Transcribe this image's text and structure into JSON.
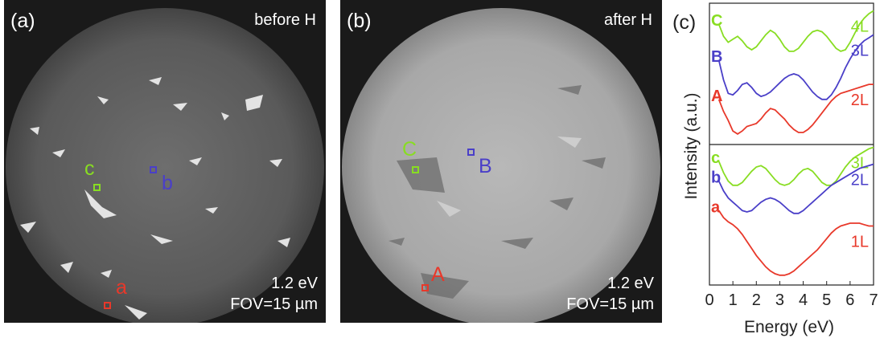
{
  "panels": [
    {
      "label": "(a)",
      "title": "before H",
      "energy": "1.2 eV",
      "fov": "FOV=15 µm",
      "markers": [
        {
          "label": "c",
          "color": "#88dd22"
        },
        {
          "label": "b",
          "color": "#4a3fc8"
        },
        {
          "label": "a",
          "color": "#e8382a"
        }
      ]
    },
    {
      "label": "(b)",
      "title": "after H",
      "energy": "1.2 eV",
      "fov": "FOV=15 µm",
      "markers": [
        {
          "label": "C",
          "color": "#88dd22"
        },
        {
          "label": "B",
          "color": "#4a3fc8"
        },
        {
          "label": "A",
          "color": "#e8382a"
        }
      ]
    }
  ],
  "chart_data": {
    "type": "line",
    "panel_label": "(c)",
    "xlabel": "Energy (eV)",
    "ylabel": "Intensity (a.u.)",
    "xlim": [
      0,
      7
    ],
    "x_ticks": [
      "0",
      "1",
      "2",
      "3",
      "4",
      "5",
      "6",
      "7"
    ],
    "groups": [
      {
        "series": [
          {
            "name": "C",
            "layer": "4L",
            "color": "#88dd22",
            "x": [
              0.4,
              0.6,
              0.8,
              1.0,
              1.2,
              1.4,
              1.6,
              1.8,
              2.0,
              2.2,
              2.4,
              2.6,
              2.8,
              3.0,
              3.2,
              3.4,
              3.6,
              3.8,
              4.0,
              4.2,
              4.4,
              4.6,
              4.8,
              5.0,
              5.2,
              5.4,
              5.6,
              5.8,
              6.0,
              6.2,
              6.4,
              6.6,
              6.8,
              7.0
            ],
            "y": [
              9.3,
              8.9,
              8.7,
              8.8,
              8.9,
              8.75,
              8.55,
              8.45,
              8.55,
              8.75,
              8.95,
              9.1,
              9.0,
              8.8,
              8.55,
              8.4,
              8.4,
              8.5,
              8.7,
              8.9,
              9.05,
              9.1,
              9.05,
              8.9,
              8.7,
              8.5,
              8.4,
              8.45,
              8.7,
              9.0,
              9.3,
              9.5,
              9.65,
              9.75
            ]
          },
          {
            "name": "B",
            "layer": "3L",
            "color": "#4a3fc8",
            "x": [
              0.4,
              0.6,
              0.8,
              1.0,
              1.2,
              1.4,
              1.6,
              1.8,
              2.0,
              2.2,
              2.4,
              2.6,
              2.8,
              3.0,
              3.2,
              3.4,
              3.6,
              3.8,
              4.0,
              4.2,
              4.4,
              4.6,
              4.8,
              5.0,
              5.2,
              5.4,
              5.6,
              5.8,
              6.0,
              6.2,
              6.4,
              6.6,
              6.8,
              7.0
            ],
            "y": [
              8.1,
              7.45,
              7.0,
              6.95,
              7.1,
              7.3,
              7.35,
              7.2,
              7.0,
              6.9,
              6.95,
              7.05,
              7.2,
              7.35,
              7.5,
              7.6,
              7.65,
              7.6,
              7.45,
              7.25,
              7.05,
              6.9,
              6.8,
              6.8,
              6.95,
              7.2,
              7.5,
              7.85,
              8.15,
              8.4,
              8.6,
              8.75,
              8.85,
              8.95
            ]
          },
          {
            "name": "A",
            "layer": "2L",
            "color": "#e8382a",
            "x": [
              0.4,
              0.6,
              0.8,
              1.0,
              1.2,
              1.4,
              1.6,
              1.8,
              2.0,
              2.2,
              2.4,
              2.6,
              2.8,
              3.0,
              3.2,
              3.4,
              3.6,
              3.8,
              4.0,
              4.2,
              4.4,
              4.6,
              4.8,
              5.0,
              5.2,
              5.4,
              5.6,
              5.8,
              6.0,
              6.2,
              6.4,
              6.6,
              6.8,
              7.0
            ],
            "y": [
              6.8,
              6.4,
              6.1,
              5.75,
              5.65,
              5.75,
              5.9,
              5.95,
              6.0,
              6.15,
              6.35,
              6.5,
              6.45,
              6.3,
              6.15,
              5.95,
              5.8,
              5.7,
              5.7,
              5.8,
              5.95,
              6.15,
              6.35,
              6.55,
              6.75,
              6.9,
              7.0,
              7.05,
              7.1,
              7.15,
              7.2,
              7.25,
              7.3,
              7.3
            ]
          }
        ]
      },
      {
        "series": [
          {
            "name": "c",
            "layer": "3L",
            "color": "#88dd22",
            "x": [
              0.4,
              0.6,
              0.8,
              1.0,
              1.2,
              1.4,
              1.6,
              1.8,
              2.0,
              2.2,
              2.4,
              2.6,
              2.8,
              3.0,
              3.2,
              3.4,
              3.6,
              3.8,
              4.0,
              4.2,
              4.4,
              4.6,
              4.8,
              5.0,
              5.2,
              5.4,
              5.6,
              5.8,
              6.0,
              6.2,
              6.4,
              6.6,
              6.8,
              7.0
            ],
            "y": [
              4.4,
              4.0,
              3.7,
              3.55,
              3.55,
              3.65,
              3.85,
              4.05,
              4.2,
              4.25,
              4.15,
              3.95,
              3.75,
              3.6,
              3.55,
              3.6,
              3.75,
              3.95,
              4.1,
              4.15,
              4.05,
              3.85,
              3.65,
              3.55,
              3.55,
              3.7,
              3.95,
              4.2,
              4.4,
              4.55,
              4.65,
              4.75,
              4.85,
              4.9
            ]
          },
          {
            "name": "b",
            "layer": "2L",
            "color": "#4a3fc8",
            "x": [
              0.4,
              0.6,
              0.8,
              1.0,
              1.2,
              1.4,
              1.6,
              1.8,
              2.0,
              2.2,
              2.4,
              2.6,
              2.8,
              3.0,
              3.2,
              3.4,
              3.6,
              3.8,
              4.0,
              4.2,
              4.4,
              4.6,
              4.8,
              5.0,
              5.2,
              5.4,
              5.6,
              5.8,
              6.0,
              6.2,
              6.4,
              6.6,
              6.8,
              7.0
            ],
            "y": [
              3.7,
              3.35,
              3.1,
              2.95,
              2.8,
              2.65,
              2.6,
              2.65,
              2.8,
              2.95,
              3.05,
              3.1,
              3.05,
              2.95,
              2.8,
              2.65,
              2.55,
              2.55,
              2.65,
              2.8,
              2.95,
              3.1,
              3.25,
              3.4,
              3.55,
              3.65,
              3.75,
              3.85,
              3.95,
              4.05,
              4.15,
              4.2,
              4.25,
              4.3
            ]
          },
          {
            "name": "a",
            "layer": "1L",
            "color": "#e8382a",
            "x": [
              0.4,
              0.6,
              0.8,
              1.0,
              1.2,
              1.4,
              1.6,
              1.8,
              2.0,
              2.2,
              2.4,
              2.6,
              2.8,
              3.0,
              3.2,
              3.4,
              3.6,
              3.8,
              4.0,
              4.2,
              4.4,
              4.6,
              4.8,
              5.0,
              5.2,
              5.4,
              5.6,
              5.8,
              6.0,
              6.2,
              6.4,
              6.6,
              6.8,
              7.0
            ],
            "y": [
              2.65,
              2.4,
              2.25,
              2.15,
              2.0,
              1.8,
              1.55,
              1.3,
              1.05,
              0.85,
              0.65,
              0.5,
              0.4,
              0.35,
              0.35,
              0.4,
              0.5,
              0.65,
              0.8,
              0.95,
              1.1,
              1.25,
              1.45,
              1.65,
              1.85,
              2.0,
              2.1,
              2.15,
              2.2,
              2.2,
              2.2,
              2.15,
              2.1,
              2.1
            ]
          }
        ]
      }
    ]
  }
}
